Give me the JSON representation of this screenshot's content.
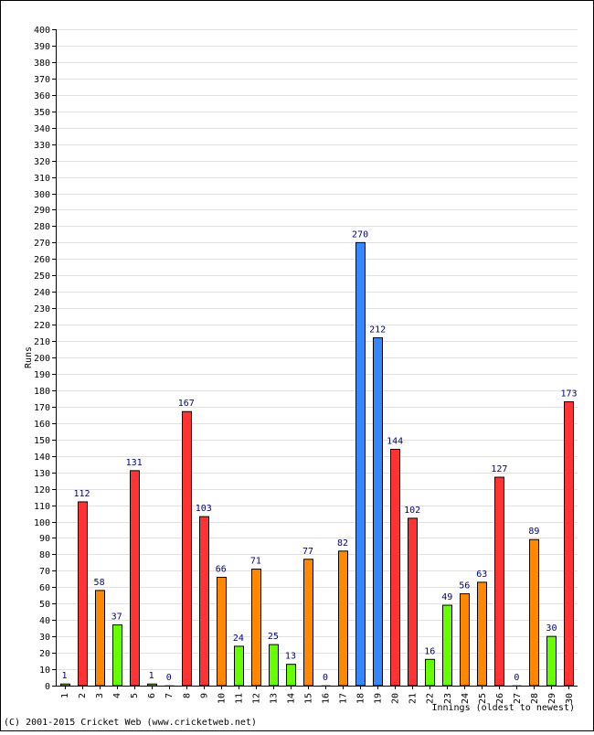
{
  "chart_data": {
    "type": "bar",
    "title": "",
    "ylabel": "Runs",
    "xlabel": "Innings (oldest to newest)",
    "ylim": [
      0,
      400
    ],
    "y_tick_step": 10,
    "grid": true,
    "categories": [
      "1",
      "2",
      "3",
      "4",
      "5",
      "6",
      "7",
      "8",
      "9",
      "10",
      "11",
      "12",
      "13",
      "14",
      "15",
      "16",
      "17",
      "18",
      "19",
      "20",
      "21",
      "22",
      "23",
      "24",
      "25",
      "26",
      "27",
      "28",
      "29",
      "30"
    ],
    "values": [
      1,
      112,
      58,
      37,
      131,
      1,
      0,
      167,
      103,
      66,
      24,
      71,
      25,
      13,
      77,
      0,
      82,
      270,
      212,
      144,
      102,
      16,
      49,
      56,
      63,
      127,
      0,
      89,
      30,
      173
    ],
    "bar_colors": [
      "#66ff00",
      "#ff3333",
      "#ff8800",
      "#66ff00",
      "#ff3333",
      "#66ff00",
      "#66ff00",
      "#ff3333",
      "#ff3333",
      "#ff8800",
      "#66ff00",
      "#ff8800",
      "#66ff00",
      "#66ff00",
      "#ff8800",
      "#66ff00",
      "#ff8800",
      "#3388ff",
      "#3388ff",
      "#ff3333",
      "#ff3333",
      "#66ff00",
      "#66ff00",
      "#ff8800",
      "#ff8800",
      "#ff3333",
      "#66ff00",
      "#ff8800",
      "#66ff00",
      "#ff3333"
    ]
  },
  "footer": {
    "copyright": "(C) 2001-2015 Cricket Web (www.cricketweb.net)"
  }
}
